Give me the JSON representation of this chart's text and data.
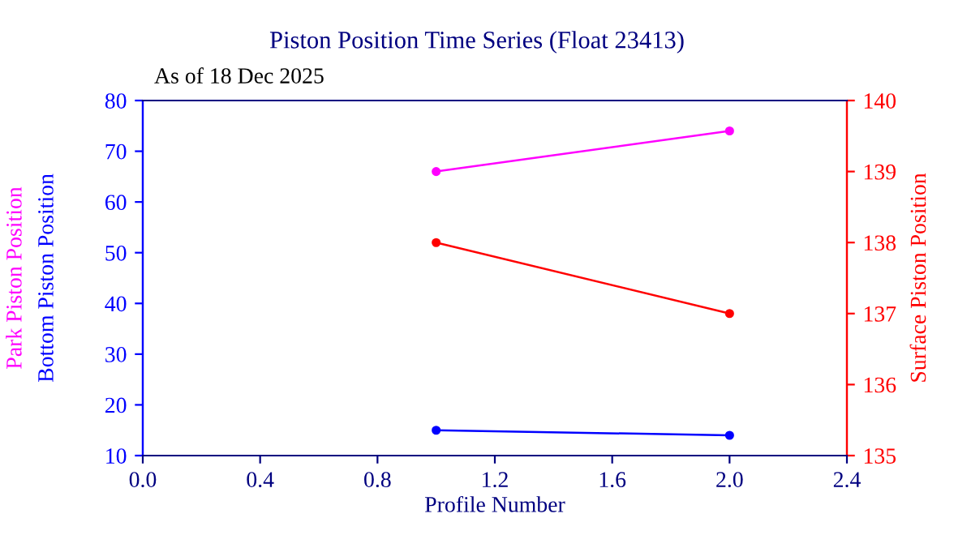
{
  "chart_data": {
    "type": "line",
    "title": "Piston Position Time Series (Float 23413)",
    "xlabel": "Profile Number",
    "annotations": [
      "As of 18 Dec 2025"
    ],
    "x": [
      1,
      2
    ],
    "series": [
      {
        "name": "Park Piston Position",
        "color": "#ff00ff",
        "values": [
          66,
          74
        ]
      },
      {
        "name": "Bottom Piston Position",
        "color": "#0000ff",
        "values": [
          15,
          14
        ]
      },
      {
        "name": "Surface Piston Position",
        "color": "#ff0000",
        "values": [
          138,
          137
        ],
        "axis": "y2"
      }
    ],
    "xlim": [
      0,
      2.4
    ],
    "xticks": [
      {
        "value": 0,
        "label": "0.0"
      },
      0.4,
      0.8,
      1.2,
      1.6,
      {
        "value": 2,
        "label": "2.0"
      },
      2.4
    ],
    "ylim": [
      10,
      80
    ],
    "yticks": [
      10,
      20,
      30,
      40,
      50,
      60,
      70,
      80
    ],
    "y2lim": [
      135,
      140
    ],
    "y2ticks": [
      135,
      136,
      137,
      138,
      139,
      140
    ],
    "marker": "circle",
    "line_style": "solid",
    "grid": false,
    "legend": false
  }
}
